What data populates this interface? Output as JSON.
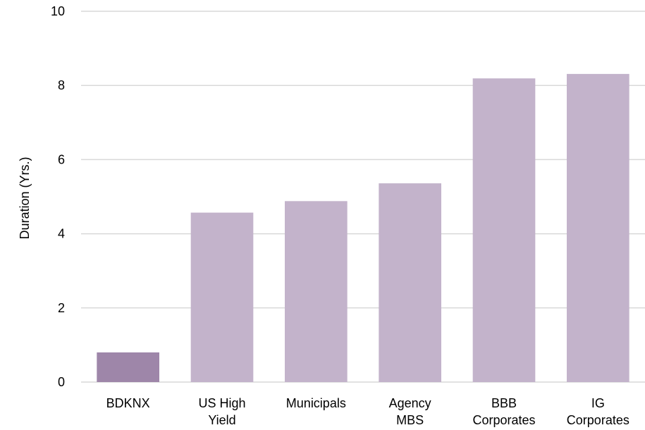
{
  "chart_data": {
    "type": "bar",
    "categories": [
      [
        "BDKNX"
      ],
      [
        "US High",
        "Yield"
      ],
      [
        "Municipals"
      ],
      [
        "Agency",
        "MBS"
      ],
      [
        "BBB",
        "Corporates"
      ],
      [
        "IG",
        "Corporates"
      ]
    ],
    "values": [
      0.8,
      4.57,
      4.88,
      5.36,
      8.19,
      8.31
    ],
    "xlabel": "",
    "ylabel": "Duration (Yrs.)",
    "ylim": [
      0,
      10
    ],
    "yticks": [
      0,
      2,
      4,
      6,
      8,
      10
    ],
    "grid": true,
    "legend": "none",
    "colors": {
      "highlight": "#9e86a9",
      "bar": "#c3b3cb",
      "grid": "#d9d9d9",
      "text": "#000000"
    }
  }
}
